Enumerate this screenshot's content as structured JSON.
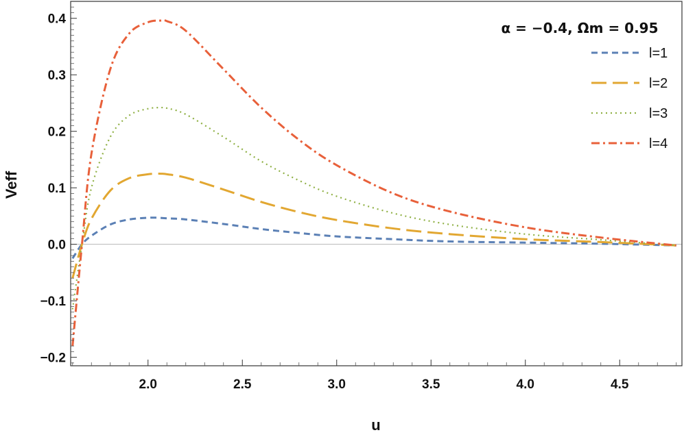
{
  "chart_data": {
    "type": "line",
    "title": "",
    "xlabel": "u",
    "ylabel": "Veff",
    "annotation": "α = −0.4, Ωm = 0.95",
    "xlim": [
      1.59,
      4.83
    ],
    "ylim": [
      -0.215,
      0.43
    ],
    "x_ticks": [
      2.0,
      2.5,
      3.0,
      3.5,
      4.0,
      4.5
    ],
    "x_tick_labels": [
      "2.0",
      "2.5",
      "3.0",
      "3.5",
      "4.0",
      "4.5"
    ],
    "y_ticks": [
      -0.2,
      -0.1,
      0.0,
      0.1,
      0.2,
      0.3,
      0.4
    ],
    "y_tick_labels": [
      "−0.2",
      "−0.1",
      "0.0",
      "0.1",
      "0.2",
      "0.3",
      "0.4"
    ],
    "grid": false,
    "zero_line": true,
    "legend": {
      "position": "top-right",
      "title": "α = −0.4, Ωm = 0.95"
    },
    "series": [
      {
        "name": "l=1",
        "color": "#5b80b5",
        "dash": "dashed-short",
        "x": [
          1.6,
          1.65,
          1.7,
          1.8,
          1.9,
          2.0,
          2.05,
          2.1,
          2.2,
          2.4,
          2.6,
          2.8,
          3.0,
          3.3,
          3.6,
          4.0,
          4.4,
          4.8
        ],
        "y": [
          -0.025,
          0.0,
          0.015,
          0.035,
          0.044,
          0.047,
          0.047,
          0.046,
          0.044,
          0.036,
          0.027,
          0.02,
          0.014,
          0.009,
          0.005,
          0.003,
          0.001,
          -0.002
        ]
      },
      {
        "name": "l=2",
        "color": "#e2a731",
        "dash": "dashed-long",
        "x": [
          1.6,
          1.65,
          1.7,
          1.8,
          1.9,
          2.0,
          2.07,
          2.1,
          2.2,
          2.4,
          2.6,
          2.8,
          3.0,
          3.3,
          3.6,
          4.0,
          4.4,
          4.8
        ],
        "y": [
          -0.06,
          0.0,
          0.045,
          0.095,
          0.117,
          0.124,
          0.125,
          0.124,
          0.118,
          0.097,
          0.075,
          0.057,
          0.043,
          0.028,
          0.018,
          0.009,
          0.004,
          -0.002
        ]
      },
      {
        "name": "l=3",
        "color": "#8fb044",
        "dash": "dotted",
        "x": [
          1.6,
          1.65,
          1.7,
          1.8,
          1.9,
          2.0,
          2.07,
          2.1,
          2.2,
          2.4,
          2.6,
          2.8,
          3.0,
          3.3,
          3.6,
          4.0,
          4.4,
          4.8
        ],
        "y": [
          -0.115,
          0.0,
          0.1,
          0.19,
          0.228,
          0.24,
          0.242,
          0.241,
          0.23,
          0.19,
          0.147,
          0.113,
          0.085,
          0.055,
          0.035,
          0.018,
          0.008,
          -0.002
        ]
      },
      {
        "name": "l=4",
        "color": "#e8603a",
        "dash": "dash-dot",
        "x": [
          1.6,
          1.65,
          1.7,
          1.8,
          1.9,
          2.0,
          2.07,
          2.1,
          2.2,
          2.4,
          2.6,
          2.8,
          3.0,
          3.3,
          3.6,
          4.0,
          4.4,
          4.8
        ],
        "y": [
          -0.18,
          0.0,
          0.16,
          0.31,
          0.373,
          0.393,
          0.396,
          0.395,
          0.378,
          0.31,
          0.242,
          0.185,
          0.14,
          0.09,
          0.058,
          0.03,
          0.012,
          -0.002
        ]
      }
    ]
  }
}
